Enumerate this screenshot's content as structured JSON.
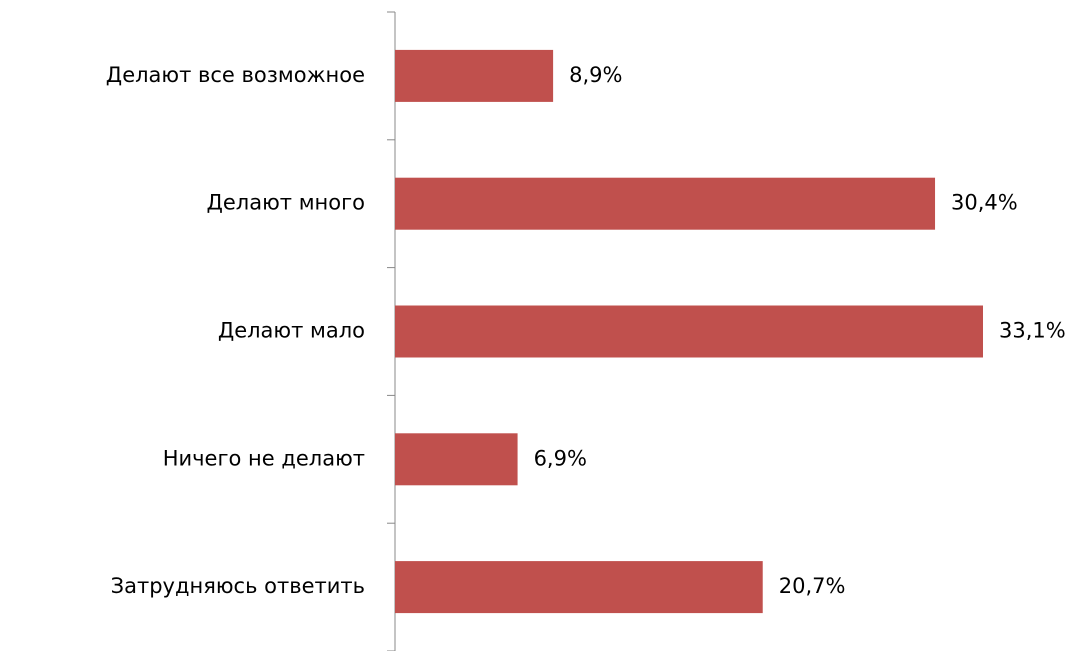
{
  "chart_data": {
    "type": "bar",
    "orientation": "horizontal",
    "categories": [
      "Делают все возможное",
      "Делают много",
      "Делают мало",
      "Ничего не делают",
      "Затрудняюсь ответить"
    ],
    "values": [
      8.9,
      30.4,
      33.1,
      6.9,
      20.7
    ],
    "value_labels": [
      "8,9%",
      "30,4%",
      "33,1%",
      "6,9%",
      "20,7%"
    ],
    "color": "#c0504d"
  }
}
